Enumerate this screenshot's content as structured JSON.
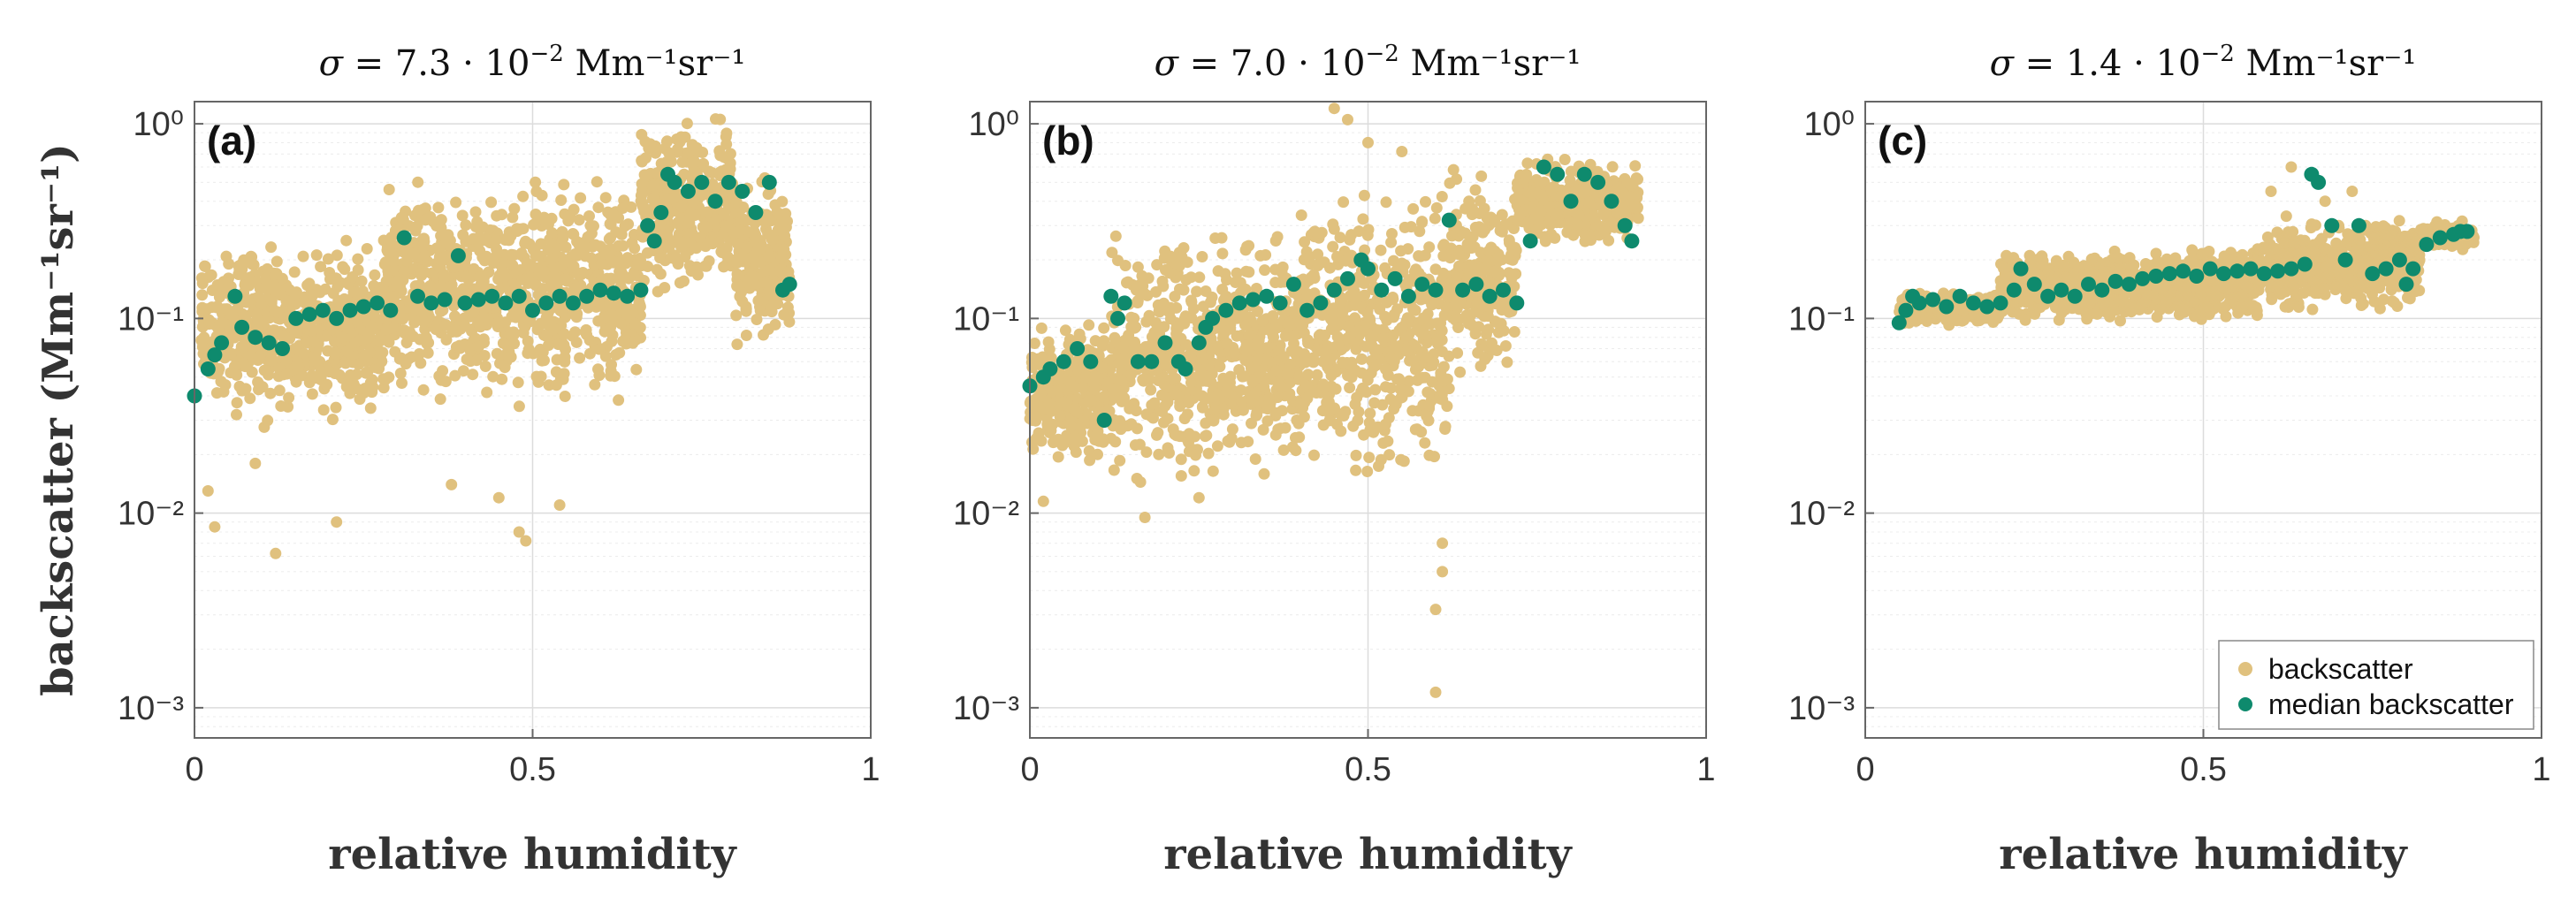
{
  "colors": {
    "backscatter": "#e0c17e",
    "median": "#0e8a6d",
    "axis": "#666666",
    "grid": "#dcdcdc",
    "minor_grid": "#ececec"
  },
  "legend": {
    "items": [
      {
        "label": "backscatter",
        "color": "#e0c17e"
      },
      {
        "label": "median backscatter",
        "color": "#0e8a6d"
      }
    ]
  },
  "shared": {
    "xlabel": "relative humidity",
    "ylabel": "backscatter (Mm⁻¹sr⁻¹)"
  },
  "chart_data": [
    {
      "type": "scatter",
      "letter": "(a)",
      "title_sigma": "σ",
      "title_value": " = 7.3 · 10",
      "title_exp": "−2",
      "title_unit": " Mm⁻¹sr⁻¹",
      "xlim": [
        0,
        1
      ],
      "ylim": [
        0.0007,
        1.3
      ],
      "yscale": "log",
      "x_ticks": [
        {
          "v": 0,
          "label": "0"
        },
        {
          "v": 0.5,
          "label": "0.5"
        },
        {
          "v": 1,
          "label": "1"
        }
      ],
      "y_ticks": [
        {
          "v": 0.001,
          "label": "10⁻³"
        },
        {
          "v": 0.01,
          "label": "10⁻²"
        },
        {
          "v": 0.1,
          "label": "10⁻¹"
        },
        {
          "v": 1,
          "label": "10⁰"
        }
      ],
      "grid": true,
      "series": [
        {
          "name": "backscatter",
          "bands": [
            {
              "x0": 0.01,
              "x1": 0.28,
              "lo": 0.025,
              "hi": 0.3
            },
            {
              "x0": 0.28,
              "x1": 0.66,
              "lo": 0.03,
              "hi": 0.65
            },
            {
              "x0": 0.66,
              "x1": 0.8,
              "lo": 0.12,
              "hi": 1.2
            },
            {
              "x0": 0.8,
              "x1": 0.88,
              "lo": 0.06,
              "hi": 0.6
            }
          ],
          "outliers": [
            [
              0.02,
              0.013
            ],
            [
              0.03,
              0.0085
            ],
            [
              0.12,
              0.0062
            ],
            [
              0.21,
              0.009
            ],
            [
              0.38,
              0.014
            ],
            [
              0.45,
              0.012
            ],
            [
              0.48,
              0.008
            ],
            [
              0.49,
              0.0072
            ],
            [
              0.54,
              0.011
            ],
            [
              0.09,
              0.018
            ]
          ]
        },
        {
          "name": "median backscatter",
          "x": [
            0.0,
            0.02,
            0.03,
            0.04,
            0.06,
            0.07,
            0.09,
            0.11,
            0.13,
            0.15,
            0.17,
            0.19,
            0.21,
            0.23,
            0.25,
            0.27,
            0.29,
            0.31,
            0.33,
            0.35,
            0.37,
            0.39,
            0.4,
            0.42,
            0.44,
            0.46,
            0.48,
            0.5,
            0.52,
            0.54,
            0.56,
            0.58,
            0.6,
            0.62,
            0.64,
            0.66,
            0.67,
            0.68,
            0.69,
            0.7,
            0.71,
            0.73,
            0.75,
            0.77,
            0.79,
            0.81,
            0.83,
            0.85,
            0.87,
            0.88
          ],
          "y": [
            0.04,
            0.055,
            0.065,
            0.075,
            0.13,
            0.09,
            0.08,
            0.075,
            0.07,
            0.1,
            0.105,
            0.11,
            0.1,
            0.11,
            0.115,
            0.12,
            0.11,
            0.26,
            0.13,
            0.12,
            0.125,
            0.21,
            0.12,
            0.125,
            0.13,
            0.12,
            0.13,
            0.11,
            0.12,
            0.13,
            0.12,
            0.13,
            0.14,
            0.135,
            0.13,
            0.14,
            0.3,
            0.25,
            0.35,
            0.55,
            0.5,
            0.45,
            0.5,
            0.4,
            0.5,
            0.45,
            0.35,
            0.5,
            0.14,
            0.15
          ]
        }
      ]
    },
    {
      "type": "scatter",
      "letter": "(b)",
      "title_sigma": "σ",
      "title_value": " = 7.0 · 10",
      "title_exp": "−2",
      "title_unit": " Mm⁻¹sr⁻¹",
      "xlim": [
        0,
        1
      ],
      "ylim": [
        0.0007,
        1.3
      ],
      "yscale": "log",
      "x_ticks": [
        {
          "v": 0,
          "label": "0"
        },
        {
          "v": 0.5,
          "label": "0.5"
        },
        {
          "v": 1,
          "label": "1"
        }
      ],
      "y_ticks": [
        {
          "v": 0.001,
          "label": "10⁻³"
        },
        {
          "v": 0.01,
          "label": "10⁻²"
        },
        {
          "v": 0.1,
          "label": "10⁻¹"
        },
        {
          "v": 1,
          "label": "10⁰"
        }
      ],
      "grid": true,
      "series": [
        {
          "name": "backscatter",
          "bands": [
            {
              "x0": 0.0,
              "x1": 0.12,
              "lo": 0.015,
              "hi": 0.11
            },
            {
              "x0": 0.12,
              "x1": 0.4,
              "lo": 0.012,
              "hi": 0.35
            },
            {
              "x0": 0.4,
              "x1": 0.62,
              "lo": 0.012,
              "hi": 0.6
            },
            {
              "x0": 0.62,
              "x1": 0.72,
              "lo": 0.04,
              "hi": 0.7
            },
            {
              "x0": 0.72,
              "x1": 0.9,
              "lo": 0.22,
              "hi": 0.7
            }
          ],
          "outliers": [
            [
              0.45,
              1.2
            ],
            [
              0.47,
              1.05
            ],
            [
              0.5,
              0.8
            ],
            [
              0.55,
              0.72
            ],
            [
              0.6,
              0.0012
            ],
            [
              0.6,
              0.0032
            ],
            [
              0.61,
              0.005
            ],
            [
              0.61,
              0.007
            ],
            [
              0.02,
              0.0115
            ],
            [
              0.1,
              0.02
            ],
            [
              0.25,
              0.012
            ],
            [
              0.17,
              0.0095
            ]
          ]
        },
        {
          "name": "median backscatter",
          "x": [
            0.0,
            0.02,
            0.03,
            0.05,
            0.07,
            0.09,
            0.11,
            0.12,
            0.13,
            0.14,
            0.16,
            0.18,
            0.2,
            0.22,
            0.23,
            0.25,
            0.26,
            0.27,
            0.29,
            0.31,
            0.33,
            0.35,
            0.37,
            0.39,
            0.41,
            0.43,
            0.45,
            0.47,
            0.49,
            0.5,
            0.52,
            0.54,
            0.56,
            0.58,
            0.6,
            0.62,
            0.64,
            0.66,
            0.68,
            0.7,
            0.72,
            0.74,
            0.76,
            0.78,
            0.8,
            0.82,
            0.84,
            0.86,
            0.88,
            0.89
          ],
          "y": [
            0.045,
            0.05,
            0.055,
            0.06,
            0.07,
            0.06,
            0.03,
            0.13,
            0.1,
            0.12,
            0.06,
            0.06,
            0.075,
            0.06,
            0.055,
            0.075,
            0.09,
            0.1,
            0.11,
            0.12,
            0.125,
            0.13,
            0.12,
            0.15,
            0.11,
            0.12,
            0.14,
            0.16,
            0.2,
            0.18,
            0.14,
            0.16,
            0.13,
            0.15,
            0.14,
            0.32,
            0.14,
            0.15,
            0.13,
            0.14,
            0.12,
            0.25,
            0.6,
            0.55,
            0.4,
            0.55,
            0.5,
            0.4,
            0.3,
            0.25
          ]
        }
      ]
    },
    {
      "type": "scatter",
      "letter": "(c)",
      "title_sigma": "σ",
      "title_value": " = 1.4 · 10",
      "title_exp": "−2",
      "title_unit": " Mm⁻¹sr⁻¹",
      "xlim": [
        0,
        1
      ],
      "ylim": [
        0.0007,
        1.3
      ],
      "yscale": "log",
      "x_ticks": [
        {
          "v": 0,
          "label": "0"
        },
        {
          "v": 0.5,
          "label": "0.5"
        },
        {
          "v": 1,
          "label": "1"
        }
      ],
      "y_ticks": [
        {
          "v": 0.001,
          "label": "10⁻³"
        },
        {
          "v": 0.01,
          "label": "10⁻²"
        },
        {
          "v": 0.1,
          "label": "10⁻¹"
        },
        {
          "v": 1,
          "label": "10⁰"
        }
      ],
      "grid": true,
      "legend_location": "bottom-right",
      "series": [
        {
          "name": "backscatter",
          "bands": [
            {
              "x0": 0.05,
              "x1": 0.2,
              "lo": 0.09,
              "hi": 0.14
            },
            {
              "x0": 0.2,
              "x1": 0.58,
              "lo": 0.09,
              "hi": 0.24
            },
            {
              "x0": 0.58,
              "x1": 0.82,
              "lo": 0.1,
              "hi": 0.35
            },
            {
              "x0": 0.82,
              "x1": 0.9,
              "lo": 0.22,
              "hi": 0.32
            }
          ],
          "outliers": [
            [
              0.6,
              0.45
            ],
            [
              0.63,
              0.6
            ],
            [
              0.66,
              0.55
            ],
            [
              0.68,
              0.4
            ],
            [
              0.7,
              0.3
            ],
            [
              0.72,
              0.45
            ],
            [
              0.74,
              0.3
            ]
          ]
        },
        {
          "name": "median backscatter",
          "x": [
            0.05,
            0.06,
            0.07,
            0.08,
            0.1,
            0.12,
            0.14,
            0.16,
            0.18,
            0.2,
            0.22,
            0.23,
            0.25,
            0.27,
            0.29,
            0.31,
            0.33,
            0.35,
            0.37,
            0.39,
            0.41,
            0.43,
            0.45,
            0.47,
            0.49,
            0.51,
            0.53,
            0.55,
            0.57,
            0.59,
            0.61,
            0.63,
            0.65,
            0.66,
            0.67,
            0.69,
            0.71,
            0.73,
            0.75,
            0.77,
            0.79,
            0.8,
            0.81,
            0.83,
            0.85,
            0.87,
            0.88,
            0.89
          ],
          "y": [
            0.095,
            0.11,
            0.13,
            0.12,
            0.125,
            0.115,
            0.13,
            0.12,
            0.115,
            0.12,
            0.14,
            0.18,
            0.15,
            0.13,
            0.14,
            0.13,
            0.15,
            0.14,
            0.155,
            0.15,
            0.16,
            0.165,
            0.17,
            0.175,
            0.165,
            0.18,
            0.17,
            0.175,
            0.18,
            0.17,
            0.175,
            0.18,
            0.19,
            0.55,
            0.5,
            0.3,
            0.2,
            0.3,
            0.17,
            0.18,
            0.2,
            0.15,
            0.18,
            0.24,
            0.26,
            0.27,
            0.28,
            0.28
          ]
        }
      ]
    }
  ]
}
